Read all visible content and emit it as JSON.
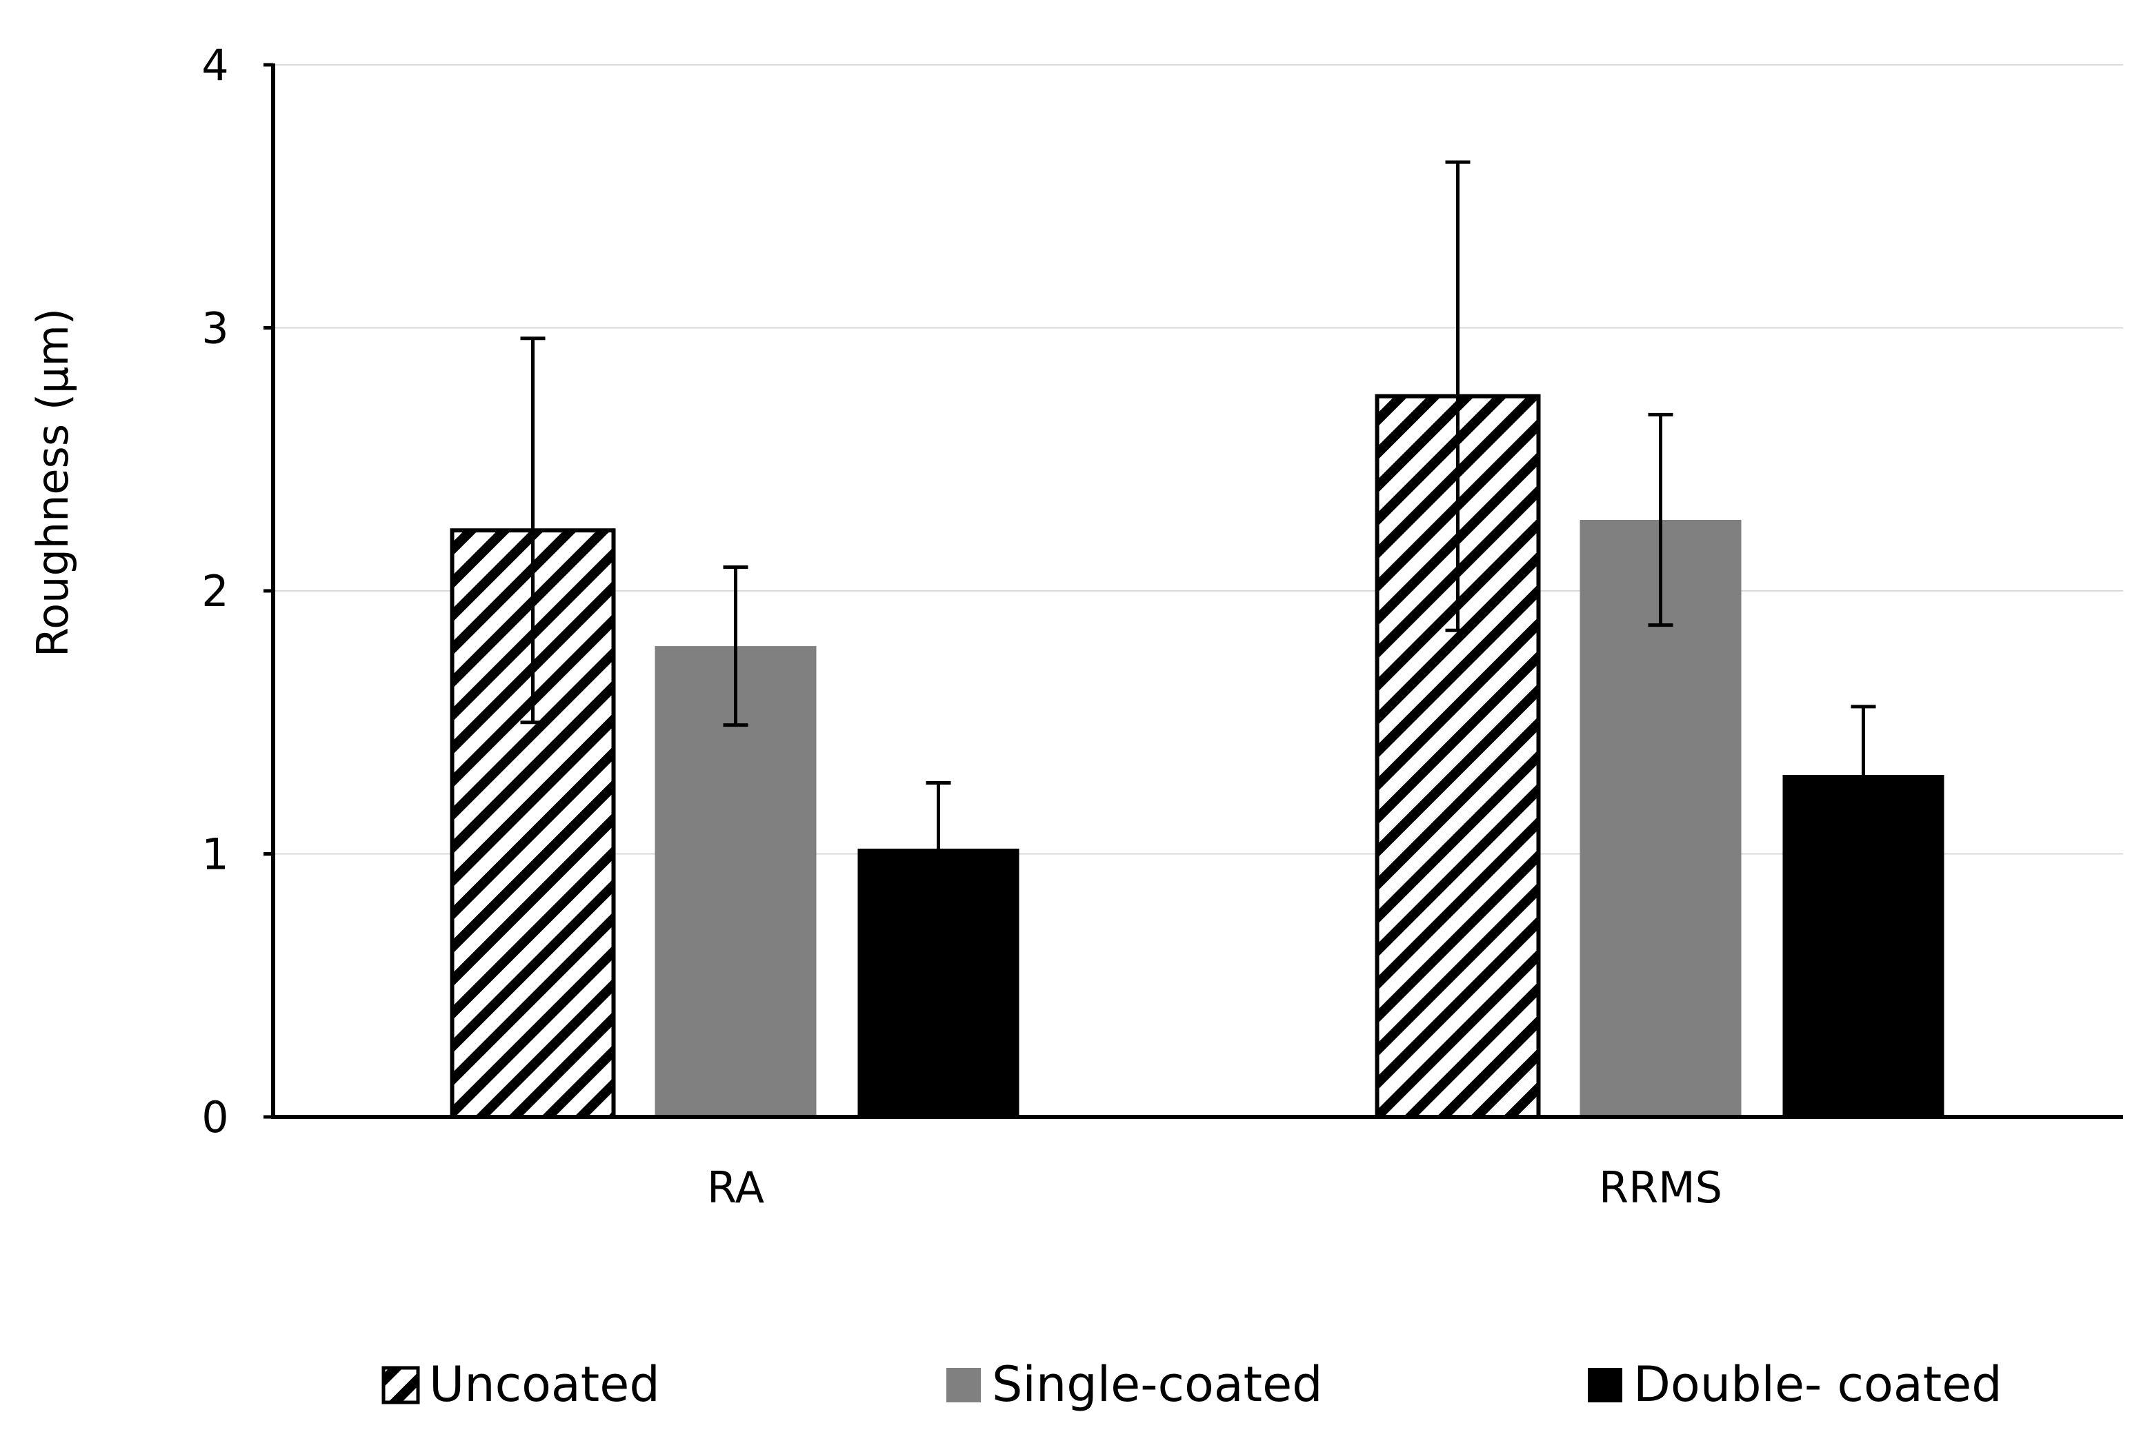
{
  "chart_data": {
    "type": "bar",
    "title": "",
    "xlabel": "",
    "ylabel": "Roughness (µm)",
    "ylim": [
      0,
      4
    ],
    "yticks": [
      0,
      1,
      2,
      3,
      4
    ],
    "ytick_labels": [
      "0",
      "1",
      "2",
      "3",
      "4"
    ],
    "grid": true,
    "legend_position": "bottom",
    "categories": [
      "RA",
      "RRMS"
    ],
    "series": [
      {
        "name": "Uncoated",
        "values": [
          2.23,
          2.74
        ],
        "errors": [
          0.73,
          0.89
        ],
        "fill": "hatch",
        "color": "#000000"
      },
      {
        "name": "Single-coated",
        "values": [
          1.79,
          2.27
        ],
        "errors": [
          0.3,
          0.4
        ],
        "fill": "solid",
        "color": "#808080"
      },
      {
        "name": "Double- coated",
        "values": [
          1.02,
          1.3
        ],
        "errors": [
          0.25,
          0.26
        ],
        "fill": "solid",
        "color": "#000000"
      }
    ]
  }
}
